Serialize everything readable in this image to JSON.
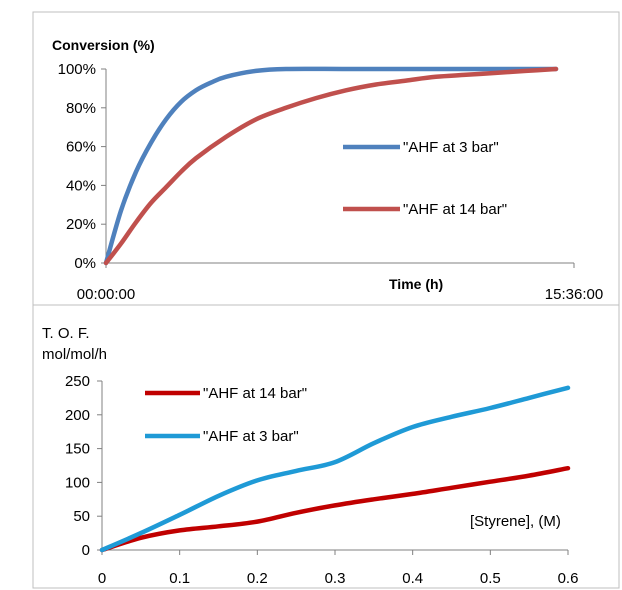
{
  "chart_data": [
    {
      "type": "line",
      "ylabel": "Conversion (%)",
      "xlabel": "Time (h)",
      "x_tick_labels": [
        "00:00:00",
        "15:36:00"
      ],
      "y_ticks": [
        "0%",
        "20%",
        "40%",
        "60%",
        "80%",
        "100%"
      ],
      "ylim": [
        0,
        100
      ],
      "xlim": [
        0,
        15.6
      ],
      "grid": false,
      "legend_position": "right",
      "series": [
        {
          "name": "\"AHF at 3 bar\"",
          "color": "#4f81bd",
          "x": [
            0,
            0.5,
            1,
            1.5,
            2,
            2.5,
            3,
            3.5,
            4,
            5,
            6,
            8,
            10,
            12,
            14,
            15
          ],
          "y": [
            0,
            27,
            47,
            62,
            74,
            83,
            89,
            93,
            96,
            99,
            100,
            100,
            100,
            100,
            100,
            100
          ]
        },
        {
          "name": "\"AHF at 14 bar\"",
          "color": "#c0504d",
          "x": [
            0,
            0.5,
            1,
            1.5,
            2,
            2.5,
            3,
            4,
            5,
            6,
            7,
            8,
            9,
            10,
            11,
            12,
            13,
            14,
            15
          ],
          "y": [
            0,
            10,
            21,
            31,
            39,
            47,
            54,
            65,
            74,
            80,
            85,
            89,
            92,
            94,
            96,
            97,
            98,
            99,
            100
          ]
        }
      ]
    },
    {
      "type": "line",
      "ylabel": [
        "T. O. F.",
        "mol/mol/h"
      ],
      "xlabel": "[Styrene], (M)",
      "x_ticks": [
        "0",
        "0.1",
        "0.2",
        "0.3",
        "0.4",
        "0.5",
        "0.6"
      ],
      "y_ticks": [
        "0",
        "50",
        "100",
        "150",
        "200",
        "250"
      ],
      "xlim": [
        0,
        0.6
      ],
      "ylim": [
        0,
        250
      ],
      "grid": false,
      "legend_position": "top-left",
      "series": [
        {
          "name": "\"AHF at 14 bar\"",
          "color": "#c00000",
          "x": [
            0,
            0.05,
            0.1,
            0.15,
            0.2,
            0.25,
            0.3,
            0.35,
            0.4,
            0.45,
            0.5,
            0.55,
            0.6
          ],
          "y": [
            0,
            18,
            29,
            35,
            42,
            55,
            66,
            75,
            83,
            92,
            101,
            110,
            121
          ]
        },
        {
          "name": "\"AHF at 3 bar\"",
          "color": "#1f9ad6",
          "x": [
            0,
            0.05,
            0.1,
            0.15,
            0.2,
            0.25,
            0.3,
            0.35,
            0.4,
            0.45,
            0.5,
            0.55,
            0.6
          ],
          "y": [
            0,
            25,
            52,
            80,
            103,
            117,
            130,
            158,
            182,
            197,
            210,
            225,
            240
          ]
        }
      ]
    }
  ]
}
